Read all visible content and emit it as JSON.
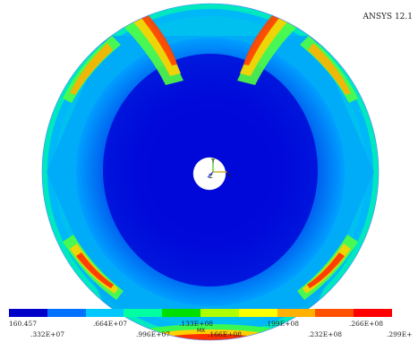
{
  "version_label": "ANSYS 12.1",
  "contour_legend": {
    "colors": [
      "#0000c8",
      "#0070ff",
      "#00c8ff",
      "#00ffa0",
      "#00e000",
      "#b0ff00",
      "#ffff00",
      "#ffb000",
      "#ff5000",
      "#ff0000"
    ],
    "top_ticks": [
      "160.457",
      ".664E+07",
      ".133E+08",
      ".199E+08",
      ".266E+08"
    ],
    "bottom_ticks": [
      ".332E+07",
      ".996E+07",
      ".166E+08",
      ".232E+08",
      ".299E+"
    ],
    "max_marker": "MX"
  },
  "triad": {
    "labels": [
      "Y",
      "Z",
      "X"
    ]
  }
}
